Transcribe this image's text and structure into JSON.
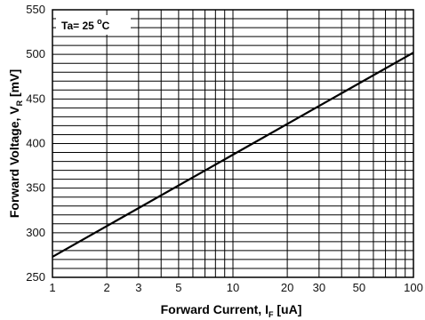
{
  "chart_data": {
    "type": "line",
    "x_scale": "log",
    "y_scale": "linear",
    "xlim": [
      1,
      100
    ],
    "ylim": [
      250,
      550
    ],
    "grid": true,
    "xlabel": {
      "main": "Forward Current, I",
      "sub": "F",
      "unit": " [uA]"
    },
    "ylabel": {
      "main": "Forward Voltage, V",
      "sub": "R",
      "unit": " [mV]"
    },
    "x_ticks": [
      1,
      2,
      3,
      5,
      10,
      20,
      30,
      50,
      100
    ],
    "x_tick_labels": [
      "1",
      "2",
      "3",
      "5",
      "10",
      "20",
      "30",
      "50",
      "100"
    ],
    "y_ticks": [
      250,
      300,
      350,
      400,
      450,
      500,
      550
    ],
    "y_tick_labels": [
      "250",
      "300",
      "350",
      "400",
      "450",
      "500",
      "550"
    ],
    "annotation": {
      "text": "Ta= 25 ",
      "sup": "o",
      "unit": "C"
    },
    "series": [
      {
        "x": [
          1,
          100
        ],
        "y": [
          273,
          502
        ],
        "color": "#000000"
      }
    ]
  }
}
